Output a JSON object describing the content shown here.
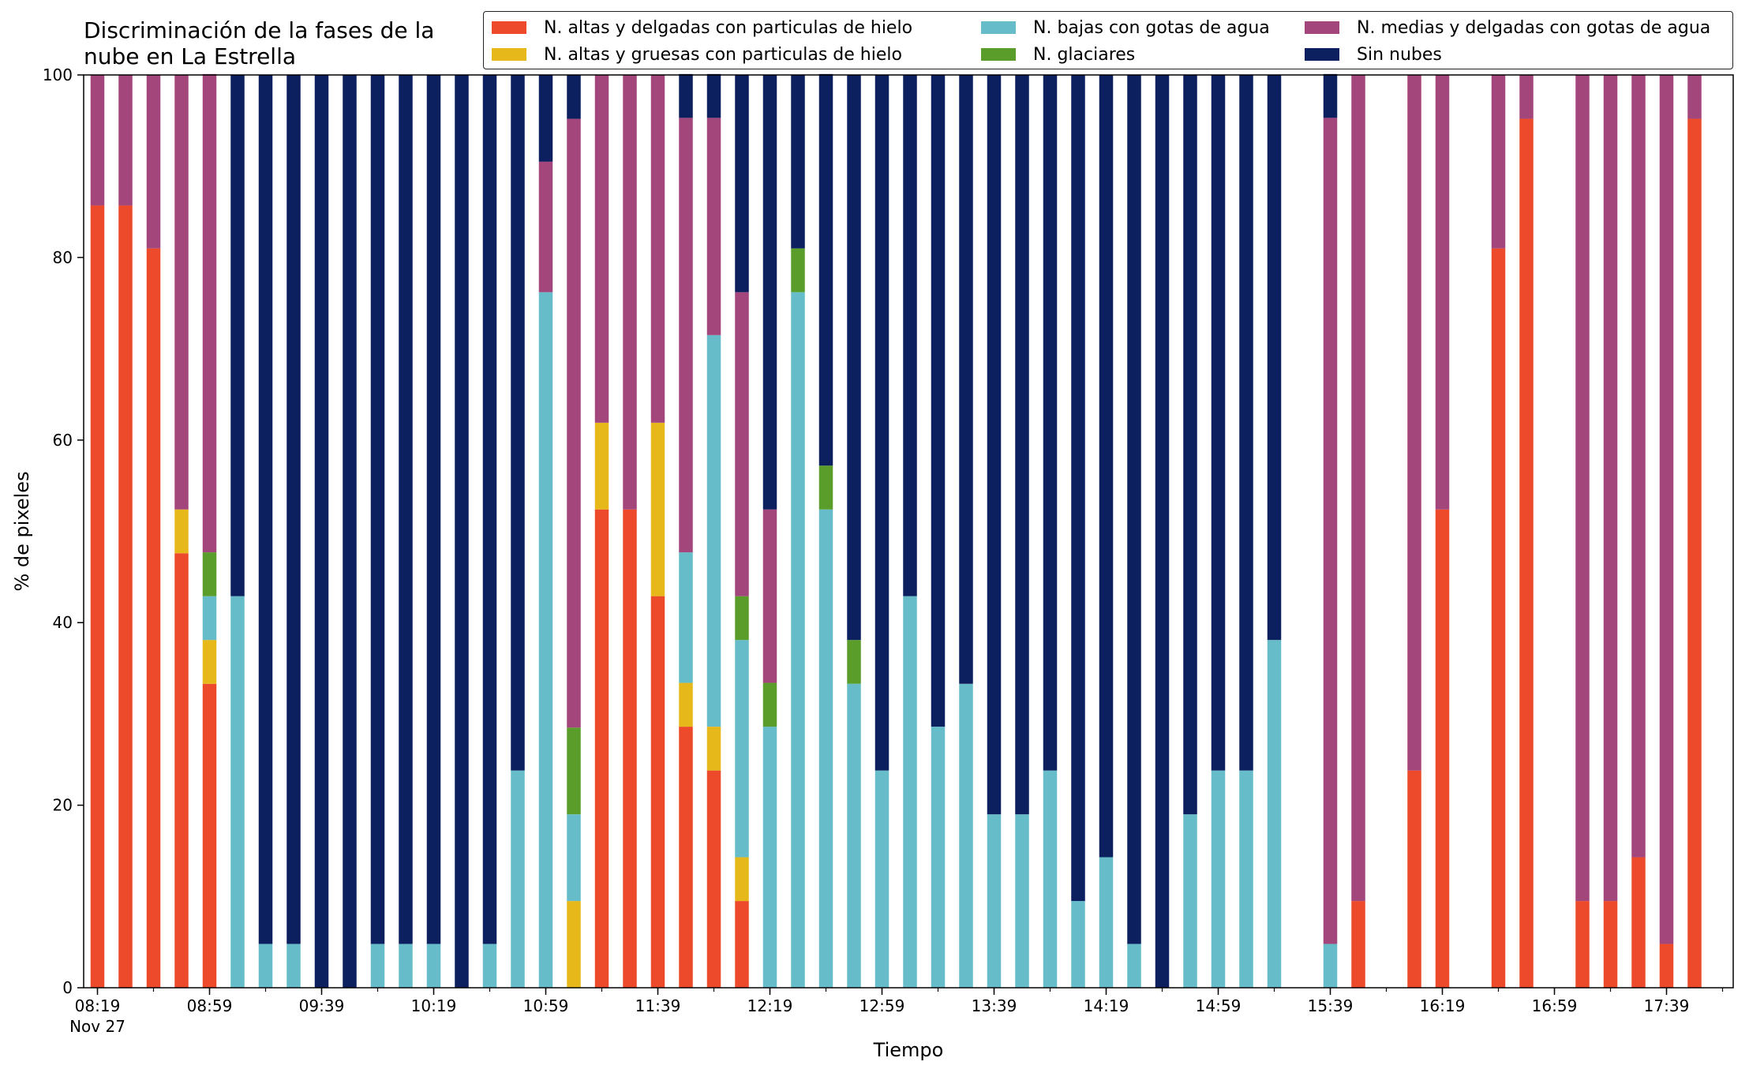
{
  "chart_data": {
    "type": "bar",
    "stacked": true,
    "title": "Discriminación de la fases de la nube en La Estrella",
    "xlabel": "Tiempo",
    "ylabel": "% de pixeles",
    "ylim": [
      0,
      100
    ],
    "yticks": [
      "0",
      "20",
      "40",
      "60",
      "80",
      "100"
    ],
    "x_tick_labels": [
      {
        "pos": 0,
        "label": "08:19",
        "sub": "Nov 27"
      },
      {
        "pos": 4,
        "label": "08:59"
      },
      {
        "pos": 8,
        "label": "09:39"
      },
      {
        "pos": 12,
        "label": "10:19"
      },
      {
        "pos": 16,
        "label": "10:59"
      },
      {
        "pos": 20,
        "label": "11:39"
      },
      {
        "pos": 24,
        "label": "12:19"
      },
      {
        "pos": 28,
        "label": "12:59"
      },
      {
        "pos": 32,
        "label": "13:39"
      },
      {
        "pos": 36,
        "label": "14:19"
      },
      {
        "pos": 40,
        "label": "14:59"
      },
      {
        "pos": 44,
        "label": "15:39"
      },
      {
        "pos": 48,
        "label": "16:19"
      },
      {
        "pos": 52,
        "label": "16:59"
      },
      {
        "pos": 56,
        "label": "17:39"
      }
    ],
    "legend_placement": "top",
    "grid": false,
    "series": [
      {
        "name": "N. altas y delgadas con particulas de hielo",
        "color": "#EC4A2A",
        "values": [
          85.7,
          85.7,
          81.0,
          47.6,
          33.3,
          0,
          0,
          0,
          0,
          0,
          0,
          0,
          0,
          0,
          0,
          0,
          0,
          0,
          52.4,
          52.4,
          42.9,
          28.6,
          23.8,
          9.5,
          0,
          0,
          0,
          0,
          0,
          0,
          0,
          0,
          0,
          0,
          0,
          0,
          0,
          0,
          0,
          0,
          0,
          0,
          0,
          0,
          0,
          9.5,
          0,
          23.8,
          52.4,
          0,
          81.0,
          95.2,
          0,
          9.5,
          9.5,
          14.3,
          4.8,
          95.2
        ]
      },
      {
        "name": "N. altas y gruesas con particulas de hielo",
        "color": "#E6B81A",
        "values": [
          0,
          0,
          0,
          4.8,
          4.8,
          0,
          0,
          0,
          0,
          0,
          0,
          0,
          0,
          0,
          0,
          0,
          0,
          9.5,
          9.5,
          0,
          19.0,
          4.8,
          4.8,
          4.8,
          0,
          0,
          0,
          0,
          0,
          0,
          0,
          0,
          0,
          0,
          0,
          0,
          0,
          0,
          0,
          0,
          0,
          0,
          0,
          0,
          0,
          0,
          0,
          0,
          0,
          0,
          0,
          0,
          0,
          0,
          0,
          0,
          0,
          0
        ]
      },
      {
        "name": "N. bajas con gotas de agua",
        "color": "#66BDC9",
        "values": [
          0,
          0,
          0,
          0,
          4.8,
          42.9,
          4.8,
          4.8,
          0,
          0,
          4.8,
          4.8,
          4.8,
          0,
          4.8,
          23.8,
          76.2,
          9.5,
          0,
          0,
          0,
          14.3,
          42.9,
          23.8,
          28.6,
          76.2,
          52.4,
          33.3,
          23.8,
          42.9,
          28.6,
          33.3,
          19.0,
          19.0,
          23.8,
          9.5,
          14.3,
          4.8,
          0,
          19.0,
          23.8,
          23.8,
          38.1,
          0,
          4.8,
          0,
          0,
          0,
          0,
          0,
          0,
          0,
          0,
          0,
          0,
          0,
          0,
          0
        ]
      },
      {
        "name": "N. glaciares",
        "color": "#5A9D2B",
        "values": [
          0,
          0,
          0,
          0,
          4.8,
          0,
          0,
          0,
          0,
          0,
          0,
          0,
          0,
          0,
          0,
          0,
          0,
          9.5,
          0,
          0,
          0,
          0,
          0,
          4.8,
          4.8,
          4.8,
          4.8,
          4.8,
          0,
          0,
          0,
          0,
          0,
          0,
          0,
          0,
          0,
          0,
          0,
          0,
          0,
          0,
          0,
          0,
          0,
          0,
          0,
          0,
          0,
          0,
          0,
          0,
          0,
          0,
          0,
          0,
          0,
          0
        ]
      },
      {
        "name": "N. medias y delgadas con gotas de agua",
        "color": "#A3467C",
        "values": [
          14.3,
          14.3,
          19.0,
          47.6,
          52.4,
          0,
          0,
          0,
          0,
          0,
          0,
          0,
          0,
          0,
          0,
          0,
          14.3,
          66.7,
          38.1,
          47.6,
          38.1,
          47.6,
          23.8,
          33.3,
          19.0,
          0,
          0,
          0,
          0,
          0,
          0,
          0,
          0,
          0,
          0,
          0,
          0,
          0,
          0,
          0,
          0,
          0,
          0,
          0,
          90.5,
          90.5,
          0,
          76.2,
          47.6,
          0,
          19.0,
          4.8,
          0,
          90.5,
          90.5,
          85.7,
          95.2,
          4.8
        ]
      },
      {
        "name": "Sin nubes",
        "color": "#0C1F5E",
        "values": [
          0,
          0,
          0,
          0,
          0,
          57.1,
          95.2,
          95.2,
          100,
          100,
          95.2,
          95.2,
          95.2,
          100,
          95.2,
          76.2,
          9.5,
          4.8,
          0,
          0,
          0,
          4.8,
          4.8,
          23.8,
          47.6,
          19.0,
          42.9,
          61.9,
          76.2,
          57.1,
          71.4,
          66.7,
          81.0,
          81.0,
          76.2,
          90.5,
          85.7,
          95.2,
          100,
          81.0,
          76.2,
          76.2,
          61.9,
          0,
          4.8,
          0,
          0,
          0,
          0,
          0,
          0,
          0,
          0,
          0,
          0,
          0,
          0,
          0
        ]
      }
    ]
  }
}
